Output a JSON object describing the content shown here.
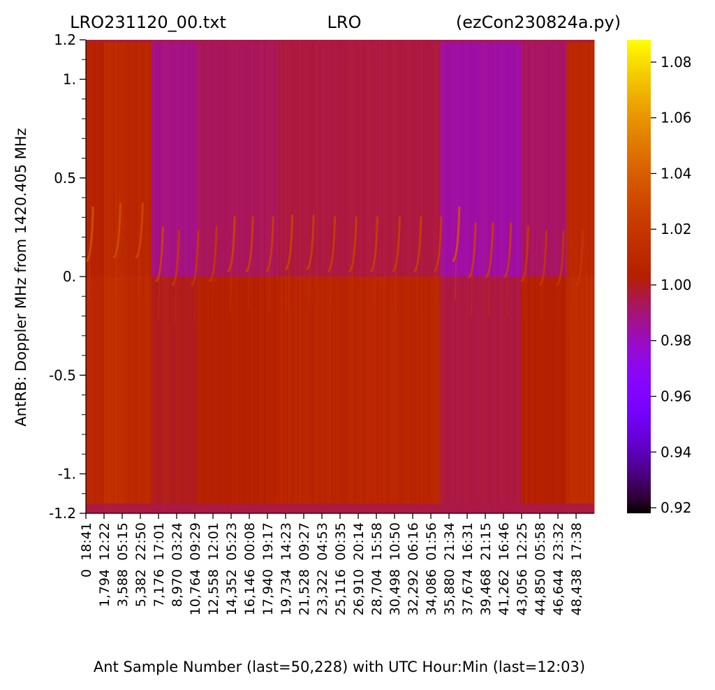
{
  "chart_data": {
    "type": "heatmap",
    "title_parts": [
      "LRO231120_00.txt",
      "LRO",
      "(ezCon230824a.py)"
    ],
    "xlabel": "Ant Sample Number (last=50,228) with UTC Hour:Min (last=12:03)",
    "ylabel": "AntRB:  Doppler MHz from 1420.405 MHz",
    "ylim": [
      -1.2,
      1.2
    ],
    "y_ticks": [
      {
        "value": 1.2,
        "label": "1.2"
      },
      {
        "value": 1.0,
        "label": "1."
      },
      {
        "value": 0.5,
        "label": "0.5"
      },
      {
        "value": 0.0,
        "label": "0."
      },
      {
        "value": -0.5,
        "label": "-0.5"
      },
      {
        "value": -1.0,
        "label": "-1."
      },
      {
        "value": -1.2,
        "label": "-1.2"
      }
    ],
    "y_minor_step": 0.1,
    "xlim": [
      0,
      50228
    ],
    "x_tick_step": 1794,
    "x_ticks": [
      {
        "sample": "0",
        "utc": "18:41"
      },
      {
        "sample": "1,794",
        "utc": "12:22"
      },
      {
        "sample": "3,588",
        "utc": "05:15"
      },
      {
        "sample": "5,382",
        "utc": "22:50"
      },
      {
        "sample": "7,176",
        "utc": "17:01"
      },
      {
        "sample": "8,970",
        "utc": "03:24"
      },
      {
        "sample": "10,764",
        "utc": "09:29"
      },
      {
        "sample": "12,558",
        "utc": "12:01"
      },
      {
        "sample": "14,352",
        "utc": "05:23"
      },
      {
        "sample": "16,146",
        "utc": "00:08"
      },
      {
        "sample": "17,940",
        "utc": "19:17"
      },
      {
        "sample": "19,734",
        "utc": "14:23"
      },
      {
        "sample": "21,528",
        "utc": "09:27"
      },
      {
        "sample": "23,322",
        "utc": "04:53"
      },
      {
        "sample": "25,116",
        "utc": "00:35"
      },
      {
        "sample": "26,910",
        "utc": "20:14"
      },
      {
        "sample": "28,704",
        "utc": "15:58"
      },
      {
        "sample": "30,498",
        "utc": "10:50"
      },
      {
        "sample": "32,292",
        "utc": "06:16"
      },
      {
        "sample": "34,086",
        "utc": "01:56"
      },
      {
        "sample": "35,880",
        "utc": "21:34"
      },
      {
        "sample": "37,674",
        "utc": "16:31"
      },
      {
        "sample": "39,468",
        "utc": "21:15"
      },
      {
        "sample": "41,262",
        "utc": "16:46"
      },
      {
        "sample": "43,056",
        "utc": "12:25"
      },
      {
        "sample": "44,850",
        "utc": "05:58"
      },
      {
        "sample": "46,644",
        "utc": "23:32"
      },
      {
        "sample": "48,438",
        "utc": "17:38"
      }
    ],
    "colorbar": {
      "colormap": "gnuplot",
      "range": [
        0.918,
        1.088
      ],
      "ticks": [
        "1.08",
        "1.06",
        "1.04",
        "1.02",
        "1.00",
        "0.98",
        "0.96",
        "0.94",
        "0.92"
      ]
    },
    "segments": [
      {
        "x": [
          0,
          1794
        ],
        "level": 1.006
      },
      {
        "x": [
          1794,
          2000
        ],
        "level": 1.013
      },
      {
        "x": [
          2000,
          3900
        ],
        "level": 1.012
      },
      {
        "x": [
          3900,
          6500
        ],
        "level": 1.008
      },
      {
        "x": [
          6500,
          11000
        ],
        "level": 0.988
      },
      {
        "x": [
          11000,
          19000
        ],
        "level": 0.993
      },
      {
        "x": [
          19000,
          35000
        ],
        "level": 0.996
      },
      {
        "x": [
          35000,
          43000
        ],
        "level": 0.984
      },
      {
        "x": [
          43000,
          47500
        ],
        "level": 0.992
      },
      {
        "x": [
          47500,
          50228
        ],
        "level": 1.01
      }
    ],
    "hi_line_events": [
      {
        "x": 500,
        "y": 0.1,
        "intensity": 1.035
      },
      {
        "x": 3200,
        "y": 0.12,
        "intensity": 1.032
      },
      {
        "x": 5400,
        "y": 0.12,
        "intensity": 1.03
      },
      {
        "x": 7400,
        "y": 0.0,
        "intensity": 1.028
      },
      {
        "x": 9000,
        "y": -0.02,
        "intensity": 1.022
      },
      {
        "x": 10900,
        "y": -0.02,
        "intensity": 1.022
      },
      {
        "x": 12700,
        "y": 0.0,
        "intensity": 1.022
      },
      {
        "x": 14500,
        "y": 0.05,
        "intensity": 1.028
      },
      {
        "x": 16300,
        "y": 0.05,
        "intensity": 1.027
      },
      {
        "x": 18300,
        "y": 0.05,
        "intensity": 1.026
      },
      {
        "x": 20200,
        "y": 0.06,
        "intensity": 1.027
      },
      {
        "x": 22300,
        "y": 0.06,
        "intensity": 1.026
      },
      {
        "x": 24400,
        "y": 0.05,
        "intensity": 1.025
      },
      {
        "x": 26500,
        "y": 0.05,
        "intensity": 1.026
      },
      {
        "x": 28600,
        "y": 0.05,
        "intensity": 1.026
      },
      {
        "x": 30800,
        "y": 0.05,
        "intensity": 1.025
      },
      {
        "x": 32900,
        "y": 0.05,
        "intensity": 1.025
      },
      {
        "x": 34900,
        "y": 0.05,
        "intensity": 1.024
      },
      {
        "x": 36700,
        "y": 0.1,
        "intensity": 1.035
      },
      {
        "x": 38300,
        "y": 0.02,
        "intensity": 1.025
      },
      {
        "x": 40000,
        "y": 0.02,
        "intensity": 1.025
      },
      {
        "x": 41800,
        "y": 0.02,
        "intensity": 1.024
      },
      {
        "x": 43500,
        "y": 0.0,
        "intensity": 1.022
      },
      {
        "x": 45300,
        "y": -0.02,
        "intensity": 1.02
      },
      {
        "x": 47000,
        "y": -0.02,
        "intensity": 1.02
      },
      {
        "x": 48900,
        "y": -0.02,
        "intensity": 1.02
      }
    ]
  }
}
